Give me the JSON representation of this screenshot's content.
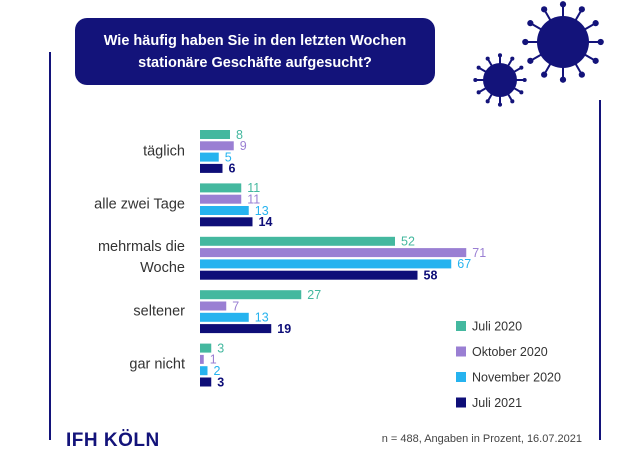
{
  "chart_data": {
    "type": "bar",
    "orientation": "horizontal",
    "title": "Wie häufig haben Sie in den letzten Wochen stationäre Geschäfte aufgesucht?",
    "categories": [
      "täglich",
      "alle zwei Tage",
      "mehrmals die Woche",
      "seltener",
      "gar nicht"
    ],
    "series": [
      {
        "name": "Juli 2020",
        "color": "#44b89f",
        "values": [
          8,
          11,
          52,
          27,
          3
        ]
      },
      {
        "name": "Oktober 2020",
        "color": "#9a7fd3",
        "values": [
          9,
          11,
          71,
          7,
          1
        ]
      },
      {
        "name": "November 2020",
        "color": "#26b3ef",
        "values": [
          5,
          13,
          67,
          13,
          2
        ]
      },
      {
        "name": "Juli 2021",
        "color": "#0e0e78",
        "values": [
          6,
          14,
          58,
          19,
          3
        ]
      }
    ],
    "logo": "IFH KÖLN",
    "footnote": "n = 488, Angaben in Prozent, 16.07.2021"
  }
}
